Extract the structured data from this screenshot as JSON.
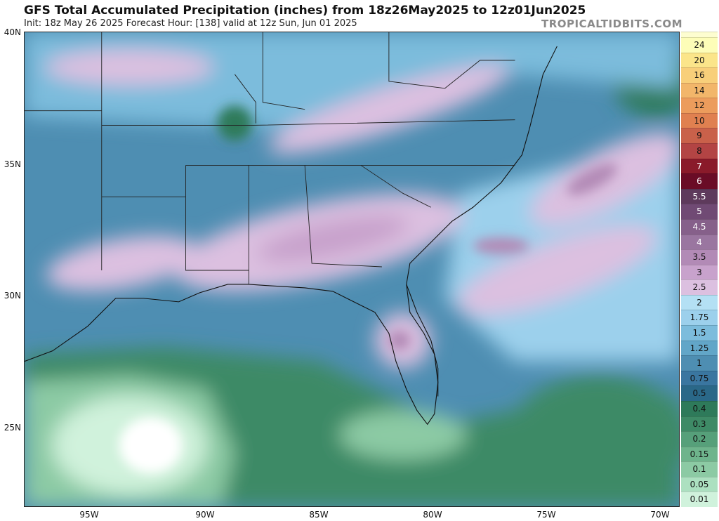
{
  "header": {
    "title": "GFS Total Accumulated Precipitation (inches) from 18z26May2025 to 12z01Jun2025",
    "subtitle": "Init: 18z May 26 2025   Forecast Hour: [138]   valid at 12z Sun, Jun 01 2025",
    "brand": "TROPICALTIDBITS.COM"
  },
  "map": {
    "lat_labels": [
      "40N",
      "35N",
      "30N",
      "25N"
    ],
    "lon_labels": [
      "95W",
      "90W",
      "85W",
      "80W",
      "75W",
      "70W"
    ],
    "region": "Southeastern United States, Gulf of Mexico and western Atlantic"
  },
  "colorbar": {
    "levels": [
      "24",
      "20",
      "16",
      "14",
      "12",
      "10",
      "9",
      "8",
      "7",
      "6",
      "5.5",
      "5",
      "4.5",
      "4",
      "3.5",
      "3",
      "2.5",
      "2",
      "1.75",
      "1.5",
      "1.25",
      "1",
      "0.75",
      "0.5",
      "0.4",
      "0.3",
      "0.2",
      "0.15",
      "0.1",
      "0.05",
      "0.01"
    ],
    "colors": [
      "#fdfdb8",
      "#fbe58a",
      "#f8cf7a",
      "#f2b66a",
      "#ec9c5c",
      "#e08050",
      "#c9614a",
      "#b34444",
      "#8a1a2a",
      "#6a0c26",
      "#5e3a5c",
      "#704a74",
      "#86608a",
      "#9a76a0",
      "#b28ab6",
      "#c8a2cc",
      "#dcc0e0",
      "#b4e0f4",
      "#9cd0ec",
      "#7cbcdc",
      "#62a6c8",
      "#4e8eb2",
      "#3a76a0",
      "#2a6888",
      "#2e7a5a",
      "#3e8a66",
      "#56a07a",
      "#6eb48c",
      "#8ccaa4",
      "#ace0c0",
      "#d0f2dc"
    ]
  }
}
